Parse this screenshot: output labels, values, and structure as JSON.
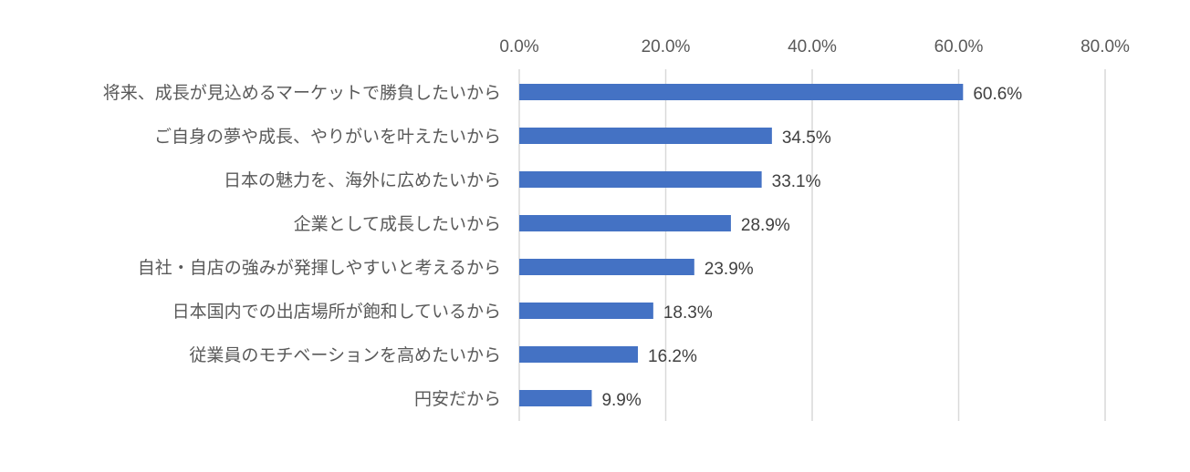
{
  "chart_data": {
    "type": "bar",
    "orientation": "horizontal",
    "title": "",
    "xlabel": "",
    "ylabel": "",
    "xlim": [
      0,
      80
    ],
    "x_ticks": [
      0,
      20,
      40,
      60,
      80
    ],
    "x_tick_labels": [
      "0.0%",
      "20.0%",
      "40.0%",
      "60.0%",
      "80.0%"
    ],
    "x_axis_position": "top",
    "grid": true,
    "legend": "none",
    "bar_color": "#4472c4",
    "categories": [
      "将来、成長が見込めるマーケットで勝負したいから",
      "ご自身の夢や成長、やりがいを叶えたいから",
      "日本の魅力を、海外に広めたいから",
      "企業として成長したいから",
      "自社・自店の強みが発揮しやすいと考えるから",
      "日本国内での出店場所が飽和しているから",
      "従業員のモチベーションを高めたいから",
      "円安だから"
    ],
    "values": [
      60.6,
      34.5,
      33.1,
      28.9,
      23.9,
      18.3,
      16.2,
      9.9
    ],
    "value_labels": [
      "60.6%",
      "34.5%",
      "33.1%",
      "28.9%",
      "23.9%",
      "18.3%",
      "16.2%",
      "9.9%"
    ]
  }
}
